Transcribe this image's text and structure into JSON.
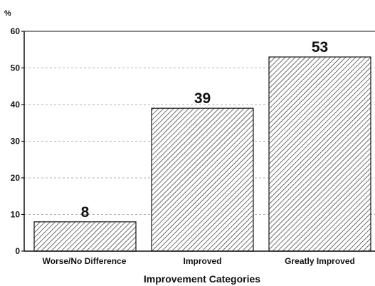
{
  "chart_data": {
    "type": "bar",
    "categories": [
      "Worse/No Difference",
      "Improved",
      "Greatly Improved"
    ],
    "values": [
      8,
      39,
      53
    ],
    "data_labels": [
      "8",
      "39",
      "53"
    ],
    "ylabel": "%",
    "xlabel": "Improvement Categories",
    "ylim": [
      0,
      60
    ],
    "yticks": [
      0,
      10,
      20,
      30,
      40,
      50,
      60
    ],
    "grid": "horizontal dashed",
    "bar_fill": "diagonal hatch"
  },
  "colors": {
    "ink": "#111111",
    "grid": "#9a9a9a",
    "background": "#ffffff"
  }
}
